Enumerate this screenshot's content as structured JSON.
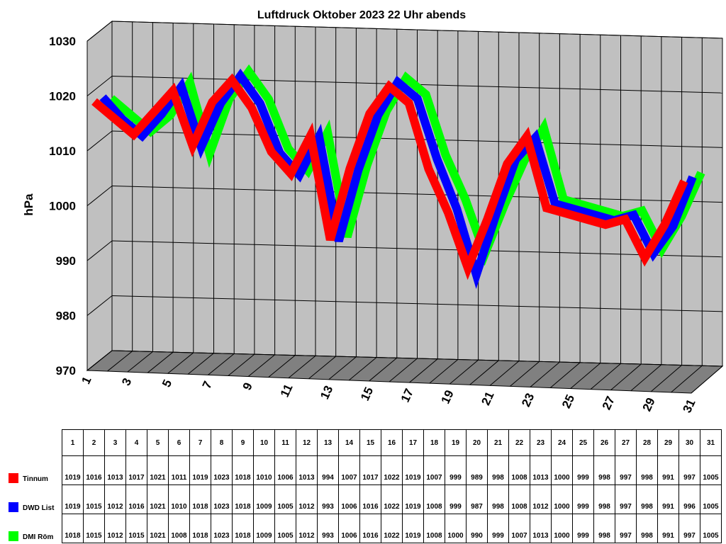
{
  "chart_data": {
    "type": "line",
    "title": "Luftdruck Oktober 2023 22 Uhr abends",
    "xlabel": "",
    "ylabel": "hPa",
    "ylim": [
      970,
      1030
    ],
    "yticks": [
      "970",
      "980",
      "990",
      "1000",
      "1010",
      "1020",
      "1030"
    ],
    "x": [
      1,
      2,
      3,
      4,
      5,
      6,
      7,
      8,
      9,
      10,
      11,
      12,
      13,
      14,
      15,
      16,
      17,
      18,
      19,
      20,
      21,
      22,
      23,
      24,
      25,
      26,
      27,
      28,
      29,
      30,
      31
    ],
    "xtick_labels": [
      "1",
      "3",
      "5",
      "7",
      "9",
      "11",
      "13",
      "15",
      "17",
      "19",
      "21",
      "23",
      "25",
      "27",
      "29",
      "31"
    ],
    "grid": true,
    "legend": "bottom-left table",
    "series": [
      {
        "name": "Tinnum",
        "color": "#ff0000",
        "values": [
          1019,
          1016,
          1013,
          1017,
          1021,
          1011,
          1019,
          1023,
          1018,
          1010,
          1006,
          1013,
          994,
          1007,
          1017,
          1022,
          1019,
          1007,
          999,
          989,
          998,
          1008,
          1013,
          1000,
          999,
          998,
          997,
          998,
          991,
          997,
          1005
        ]
      },
      {
        "name": "DWD List",
        "color": "#0000ff",
        "values": [
          1019,
          1015,
          1012,
          1016,
          1021,
          1010,
          1018,
          1023,
          1018,
          1009,
          1005,
          1012,
          993,
          1006,
          1016,
          1022,
          1019,
          1008,
          999,
          987,
          998,
          1008,
          1012,
          1000,
          999,
          998,
          997,
          998,
          991,
          996,
          1005
        ]
      },
      {
        "name": "DMI Röm",
        "color": "#00ff00",
        "values": [
          1018,
          1015,
          1012,
          1015,
          1021,
          1008,
          1018,
          1023,
          1018,
          1009,
          1005,
          1012,
          993,
          1006,
          1016,
          1022,
          1019,
          1008,
          1000,
          990,
          999,
          1007,
          1013,
          1000,
          999,
          998,
          997,
          998,
          991,
          997,
          1005
        ]
      }
    ]
  },
  "table": {
    "day_headers": [
      "1",
      "2",
      "3",
      "4",
      "5",
      "6",
      "7",
      "8",
      "9",
      "10",
      "11",
      "12",
      "13",
      "14",
      "15",
      "16",
      "17",
      "18",
      "19",
      "20",
      "21",
      "22",
      "23",
      "24",
      "25",
      "26",
      "27",
      "28",
      "29",
      "30",
      "31"
    ]
  }
}
